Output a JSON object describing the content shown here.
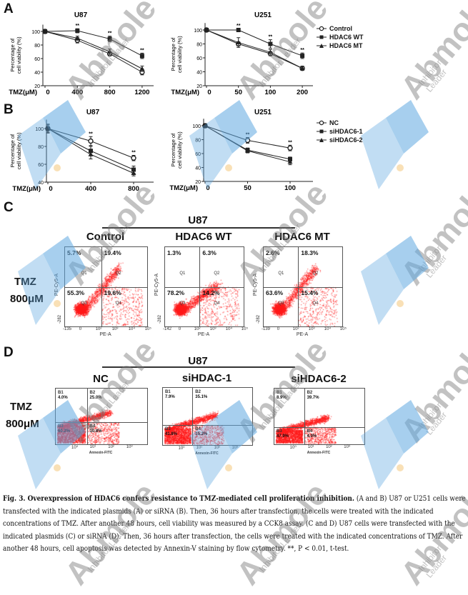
{
  "panels": {
    "A": {
      "letter": "A"
    },
    "B": {
      "letter": "B"
    },
    "C": {
      "letter": "C",
      "cell_line": "U87",
      "treatment": [
        "TMZ",
        "800μM"
      ]
    },
    "D": {
      "letter": "D",
      "cell_line": "U87",
      "treatment": [
        "TMZ",
        "800μM"
      ]
    }
  },
  "chart_data": [
    {
      "id": "A-U87",
      "type": "line",
      "title": "U87",
      "ylabel": [
        "Percentage of",
        "cell viability (%)"
      ],
      "xlabel": "TMZ(μM)",
      "x": [
        "0",
        "400",
        "800",
        "1200"
      ],
      "yticks": [
        20,
        40,
        60,
        80,
        100
      ],
      "ylim": [
        20,
        110
      ],
      "significance": [
        "",
        "**",
        "**",
        "**"
      ],
      "series": [
        {
          "name": "Control",
          "marker": "circle-open",
          "values": [
            100,
            87,
            67,
            40
          ],
          "err": [
            3,
            4,
            3,
            4
          ]
        },
        {
          "name": "HDAC6 WT",
          "marker": "square",
          "values": [
            100,
            101,
            89,
            64
          ],
          "err": [
            2,
            3,
            4,
            4
          ]
        },
        {
          "name": "HDAC6 MT",
          "marker": "triangle",
          "values": [
            100,
            90,
            70,
            45
          ],
          "err": [
            2,
            3,
            4,
            4
          ]
        }
      ]
    },
    {
      "id": "A-U251",
      "type": "line",
      "title": "U251",
      "ylabel": [
        "Percentage of",
        "cell viability (%)"
      ],
      "xlabel": "TMZ(μM)",
      "x": [
        "0",
        "50",
        "100",
        "200"
      ],
      "yticks": [
        20,
        40,
        60,
        80,
        100
      ],
      "ylim": [
        20,
        110
      ],
      "significance": [
        "",
        "**",
        "**",
        "**"
      ],
      "series": [
        {
          "name": "Control",
          "marker": "circle-open",
          "values": [
            100,
            80,
            66,
            45
          ],
          "err": [
            1,
            3,
            3,
            3
          ]
        },
        {
          "name": "HDAC6 WT",
          "marker": "square",
          "values": [
            100,
            100,
            80,
            63
          ],
          "err": [
            1,
            2,
            6,
            4
          ]
        },
        {
          "name": "HDAC6 MT",
          "marker": "triangle",
          "values": [
            100,
            82,
            68,
            45
          ],
          "err": [
            1,
            7,
            4,
            3
          ]
        }
      ]
    },
    {
      "id": "B-U87",
      "type": "line",
      "title": "U87",
      "ylabel": [
        "Percentage of",
        "cell viability (%)"
      ],
      "xlabel": "TMZ(μM)",
      "x": [
        "0",
        "400",
        "800"
      ],
      "yticks": [
        40,
        60,
        80,
        100
      ],
      "ylim": [
        40,
        110
      ],
      "significance": [
        "",
        "**",
        "**"
      ],
      "series": [
        {
          "name": "NC",
          "marker": "circle-open",
          "values": [
            100,
            86,
            67
          ],
          "err": [
            5,
            5,
            3
          ]
        },
        {
          "name": "siHDAC6-1",
          "marker": "square",
          "values": [
            100,
            75,
            54
          ],
          "err": [
            4,
            5,
            4
          ]
        },
        {
          "name": "siHDAC6-2",
          "marker": "triangle",
          "values": [
            100,
            71,
            50
          ],
          "err": [
            4,
            5,
            3
          ]
        }
      ]
    },
    {
      "id": "B-U251",
      "type": "line",
      "title": "U251",
      "ylabel": [
        "Percentage of",
        "cell viability (%)"
      ],
      "xlabel": "TMZ(μM)",
      "x": [
        "0",
        "50",
        "100"
      ],
      "yticks": [
        20,
        40,
        60,
        80,
        100
      ],
      "ylim": [
        20,
        110
      ],
      "significance": [
        "",
        "**",
        "**"
      ],
      "series": [
        {
          "name": "NC",
          "marker": "circle-open",
          "values": [
            100,
            79,
            68
          ],
          "err": [
            3,
            4,
            4
          ]
        },
        {
          "name": "siHDAC6-1",
          "marker": "square",
          "values": [
            100,
            65,
            52
          ],
          "err": [
            2,
            3,
            3
          ]
        },
        {
          "name": "siHDAC6-2",
          "marker": "triangle",
          "values": [
            100,
            64,
            48
          ],
          "err": [
            2,
            3,
            4
          ]
        }
      ]
    }
  ],
  "legends": {
    "A": [
      "Control",
      "HDAC6 WT",
      "HDAC6 MT"
    ],
    "B": [
      "NC",
      "siHDAC6-1",
      "siHDAC6-2"
    ]
  },
  "flow_C": {
    "xlabel": "PE-A",
    "ylabel": "PE-Cy5-A",
    "plots": [
      {
        "title": "Control",
        "xmin": "-135",
        "ymin": "-282",
        "q": [
          "5.7%",
          "19.4%",
          "55.3%",
          "19.6%"
        ],
        "qlab": [
          "Q1",
          "Q2",
          "Q3",
          "Q4"
        ]
      },
      {
        "title": "HDAC6 WT",
        "xmin": "-142",
        "ymin": "-282",
        "q": [
          "1.3%",
          "6.3%",
          "78.2%",
          "14.2%"
        ],
        "qlab": [
          "Q1",
          "Q2",
          "Q3",
          "Q4"
        ]
      },
      {
        "title": "HDAC6 MT",
        "xmin": "-139",
        "ymin": "-282",
        "q": [
          "2.6%",
          "18.3%",
          "63.6%",
          "15.4%"
        ],
        "qlab": [
          "Q1",
          "Q2",
          "Q3",
          "Q4"
        ]
      }
    ],
    "xticks": [
      "0",
      "10²",
      "10³",
      "10⁴",
      "10⁵"
    ]
  },
  "flow_D": {
    "xlabel": "Annexin-FITC",
    "plots": [
      {
        "title": "NC",
        "q": [
          "4.0%",
          "25.0%",
          "60.2%",
          "10.8%"
        ],
        "qlab": [
          "B1",
          "B2",
          "B3",
          "B4"
        ]
      },
      {
        "title": "siHDAC-1",
        "q": [
          "7.9%",
          "35.1%",
          "41.8%",
          "15.2%"
        ],
        "qlab": [
          "B1",
          "B2",
          "B3",
          "B4"
        ]
      },
      {
        "title": "siHDAC6-2",
        "q": [
          "8.9%",
          "39.7%",
          "47.9%",
          "4.0%"
        ],
        "qlab": [
          "B1",
          "B2",
          "B3",
          "B4"
        ]
      }
    ],
    "xticks": [
      "10⁰",
      "10¹",
      "10²",
      "10³"
    ]
  },
  "caption": {
    "bold": "Fig. 3. Overexpression of HDAC6 confers resistance to TMZ-mediated cell proliferation inhibition.",
    "text": " (A and B) U87 or U251 cells were transfected with the indicated plasmids (A) or siRNA (B). Then, 36 hours after transfection, the cells were treated with the indicated concentrations of TMZ. After another 48 hours, cell viability was measured by a CCK8 assay. (C and D) U87 cells were transfected with the indicated plasmids (C) or siRNA (D). Then, 36 hours after transfection, the cells were treated with the indicated concentrations of TMZ. After another 48 hours, cell apoptosis was detected by Annexin-V staining by flow cytometry. **, P < 0.01, t-test."
  },
  "watermark": {
    "brand": "Abmole",
    "tagline": "Inhibitor Leader"
  },
  "colors": {
    "dots": "#ff1a1a",
    "watermark_blue": "#5fa8e0",
    "watermark_dot": "#f5c77a"
  }
}
